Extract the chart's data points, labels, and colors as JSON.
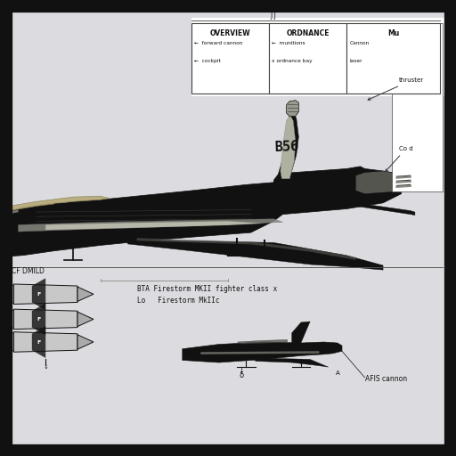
{
  "background_color": "#dcdce0",
  "border_color": "#111111",
  "jet_color": "#111111",
  "jet_silver": "#aaaaaa",
  "jet_light": "#cccccc",
  "jet_gold": "#b8a878",
  "legend_boxes": [
    {
      "title": "OVERVIEW",
      "lines": [
        "←  forward cannon",
        "←  cockpit"
      ]
    },
    {
      "title": "ORDNANCE",
      "lines": [
        "←  munitions",
        "x ordnance bay"
      ]
    },
    {
      "title": "Mu",
      "lines": [
        "Cannon",
        "laser"
      ]
    }
  ],
  "annot_thruster": "thruster",
  "annot_cod": "Co d",
  "tail_number": "B56",
  "bottom_left_text": "CF DMILD",
  "bottom_text1": "BTA Firestorm MKII fighter class x",
  "bottom_text2": "Lo   Firestorm MkIIc",
  "bottom_label": "AFIS cannon",
  "top_label": "J J"
}
